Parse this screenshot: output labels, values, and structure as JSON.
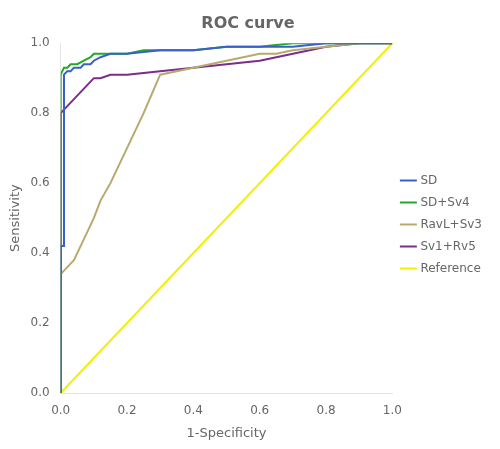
{
  "chart_data": {
    "type": "line",
    "title": "ROC curve",
    "x_label": "1-Specificity",
    "y_label": "Sensitivity",
    "xlim": [
      0,
      1
    ],
    "ylim": [
      0,
      1
    ],
    "xticks": [
      {
        "value": 0,
        "label": "0.0"
      },
      0.2,
      0.4,
      0.6,
      0.8,
      {
        "value": 1,
        "label": "1.0"
      }
    ],
    "yticks": [
      {
        "value": 0,
        "label": "0.0"
      },
      0.2,
      0.4,
      0.6,
      0.8,
      {
        "value": 1,
        "label": "1.0"
      }
    ],
    "grid": false,
    "legend": "right",
    "series": [
      {
        "name": "SD",
        "color": "#3a5fcd",
        "x": [
          0.0,
          0.0,
          0.0,
          0.0,
          0.0,
          0.01,
          0.01,
          0.02,
          0.03,
          0.04,
          0.05,
          0.06,
          0.07,
          0.08,
          0.09,
          0.1,
          0.12,
          0.15,
          0.2,
          0.3,
          0.4,
          0.5,
          0.6,
          0.7,
          0.8,
          0.9,
          1.0
        ],
        "values": [
          0.0,
          0.2,
          0.3,
          0.38,
          0.42,
          0.42,
          0.91,
          0.92,
          0.92,
          0.93,
          0.93,
          0.93,
          0.94,
          0.94,
          0.94,
          0.95,
          0.96,
          0.97,
          0.97,
          0.98,
          0.98,
          0.99,
          0.99,
          0.99,
          1.0,
          1.0,
          1.0
        ]
      },
      {
        "name": "SD+Sv4",
        "color": "#22aa22",
        "x": [
          0.0,
          0.0,
          0.0,
          0.0,
          0.01,
          0.02,
          0.03,
          0.05,
          0.07,
          0.09,
          0.1,
          0.12,
          0.15,
          0.2,
          0.25,
          0.3,
          0.4,
          0.5,
          0.6,
          0.7,
          0.8,
          0.9,
          1.0
        ],
        "values": [
          0.0,
          0.05,
          0.19,
          0.91,
          0.93,
          0.93,
          0.94,
          0.94,
          0.95,
          0.96,
          0.97,
          0.97,
          0.97,
          0.97,
          0.98,
          0.98,
          0.98,
          0.99,
          0.99,
          1.0,
          1.0,
          1.0,
          1.0
        ]
      },
      {
        "name": "RavL+Sv3",
        "color": "#b8a96e",
        "x": [
          0.0,
          0.0,
          0.0,
          0.01,
          0.02,
          0.03,
          0.04,
          0.05,
          0.06,
          0.07,
          0.08,
          0.09,
          0.1,
          0.12,
          0.15,
          0.2,
          0.25,
          0.3,
          0.4,
          0.5,
          0.55,
          0.6,
          0.65,
          0.7,
          0.8,
          0.9,
          1.0
        ],
        "values": [
          0.0,
          0.03,
          0.34,
          0.35,
          0.36,
          0.37,
          0.38,
          0.4,
          0.42,
          0.44,
          0.46,
          0.48,
          0.5,
          0.55,
          0.6,
          0.7,
          0.8,
          0.91,
          0.93,
          0.95,
          0.96,
          0.97,
          0.97,
          0.98,
          0.99,
          1.0,
          1.0
        ]
      },
      {
        "name": "Sv1+Rv5",
        "color": "#7b2d8b",
        "x": [
          0.0,
          0.0,
          0.0,
          0.01,
          0.02,
          0.03,
          0.04,
          0.05,
          0.06,
          0.07,
          0.08,
          0.09,
          0.1,
          0.11,
          0.12,
          0.15,
          0.2,
          0.3,
          0.4,
          0.5,
          0.6,
          0.7,
          0.8,
          0.9,
          1.0
        ],
        "values": [
          0.0,
          0.72,
          0.8,
          0.81,
          0.82,
          0.83,
          0.84,
          0.85,
          0.86,
          0.87,
          0.88,
          0.89,
          0.9,
          0.9,
          0.9,
          0.91,
          0.91,
          0.92,
          0.93,
          0.94,
          0.95,
          0.97,
          0.99,
          1.0,
          1.0
        ]
      },
      {
        "name": "Reference",
        "color": "#f0f000",
        "x": [
          0,
          1
        ],
        "values": [
          0,
          1
        ]
      }
    ]
  }
}
